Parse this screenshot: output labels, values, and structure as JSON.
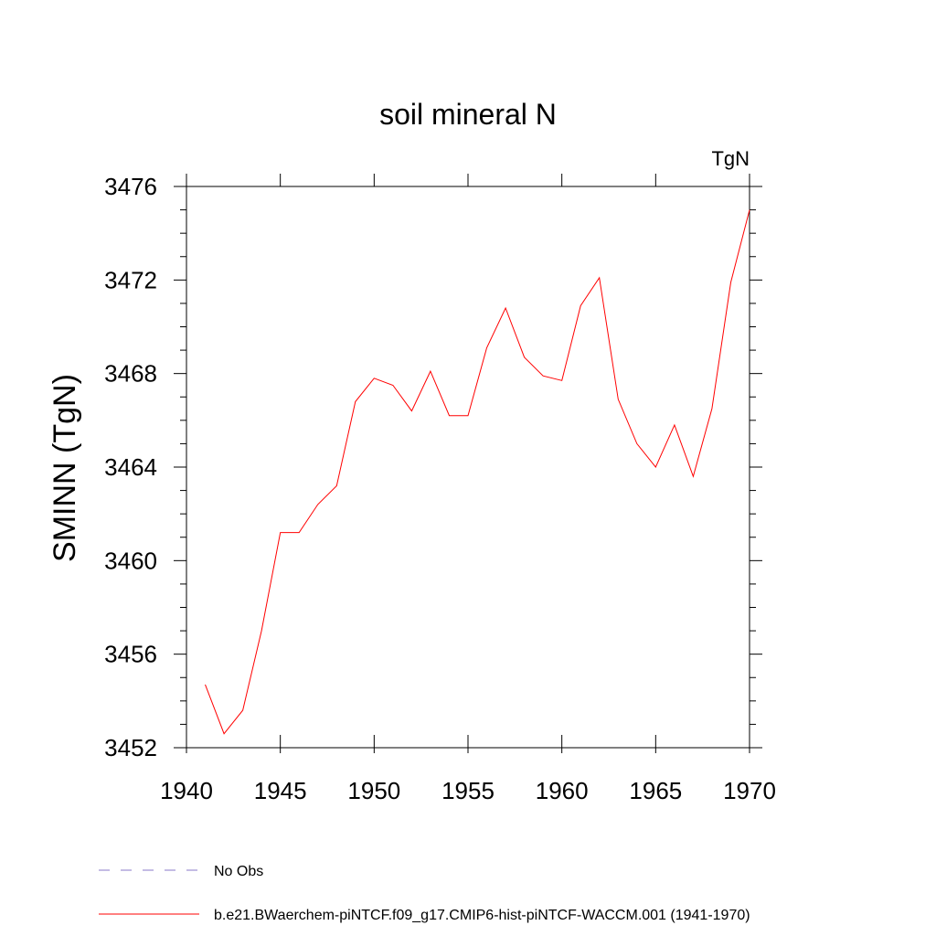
{
  "chart_data": {
    "type": "line",
    "title": "soil mineral N",
    "units": "TgN",
    "xlabel": "",
    "ylabel": "SMINN  (TgN)",
    "xlim": [
      1940,
      1970
    ],
    "ylim": [
      3452,
      3476
    ],
    "xticks": [
      1940,
      1945,
      1950,
      1955,
      1960,
      1965,
      1970
    ],
    "yticks": [
      3452,
      3456,
      3460,
      3464,
      3468,
      3472,
      3476
    ],
    "grid": false,
    "legend_position": "bottom-left",
    "series": [
      {
        "name": "b.e21.BWaerchem-piNTCF.f09_g17.CMIP6-hist-piNTCF-WACCM.001 (1941-1970)",
        "color": "#ff0000",
        "dash": "solid",
        "x": [
          1941,
          1942,
          1943,
          1944,
          1945,
          1946,
          1947,
          1948,
          1949,
          1950,
          1951,
          1952,
          1953,
          1954,
          1955,
          1956,
          1957,
          1958,
          1959,
          1960,
          1961,
          1962,
          1963,
          1964,
          1965,
          1966,
          1967,
          1968,
          1969,
          1970
        ],
        "values": [
          3454.7,
          3452.6,
          3453.6,
          3457.0,
          3461.2,
          3461.2,
          3462.4,
          3463.2,
          3466.8,
          3467.8,
          3467.5,
          3466.4,
          3468.1,
          3466.2,
          3466.2,
          3469.1,
          3470.8,
          3468.7,
          3467.9,
          3467.7,
          3470.9,
          3472.1,
          3466.9,
          3465.0,
          3464.0,
          3465.8,
          3463.6,
          3466.5,
          3471.9,
          3475.0
        ]
      }
    ],
    "legend": [
      {
        "label": "No Obs",
        "color": "#8878c8",
        "dash": "dashed"
      },
      {
        "label": "b.e21.BWaerchem-piNTCF.f09_g17.CMIP6-hist-piNTCF-WACCM.001 (1941-1970)",
        "color": "#ff0000",
        "dash": "solid"
      }
    ]
  }
}
